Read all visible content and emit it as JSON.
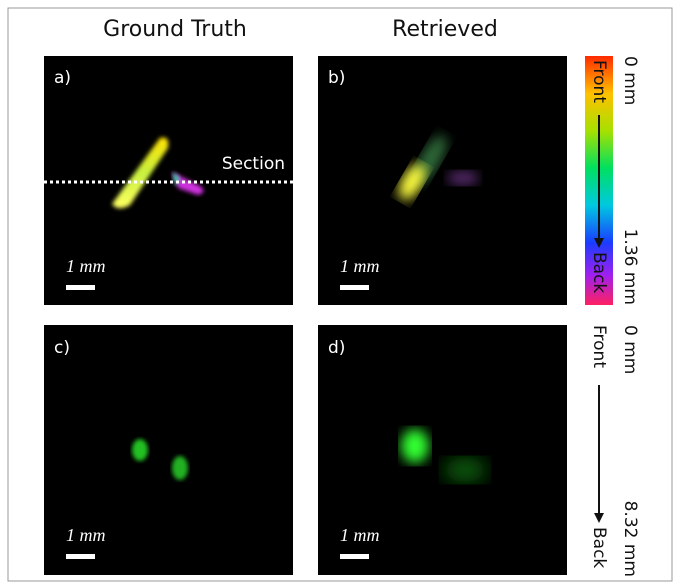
{
  "column_headers": [
    "Ground Truth",
    "Retrieved"
  ],
  "panels": [
    {
      "label": "a)",
      "scale_bar": "1 mm",
      "annotation": "Section"
    },
    {
      "label": "b)",
      "scale_bar": "1 mm"
    },
    {
      "label": "c)",
      "scale_bar": "1 mm"
    },
    {
      "label": "d)",
      "scale_bar": "1 mm"
    }
  ],
  "depth_scales": [
    {
      "top": "0 mm",
      "bottom": "1.36 mm",
      "front": "Front",
      "back": "Back"
    },
    {
      "top": "0 mm",
      "bottom": "8.32 mm",
      "front": "Front",
      "back": "Back"
    }
  ]
}
